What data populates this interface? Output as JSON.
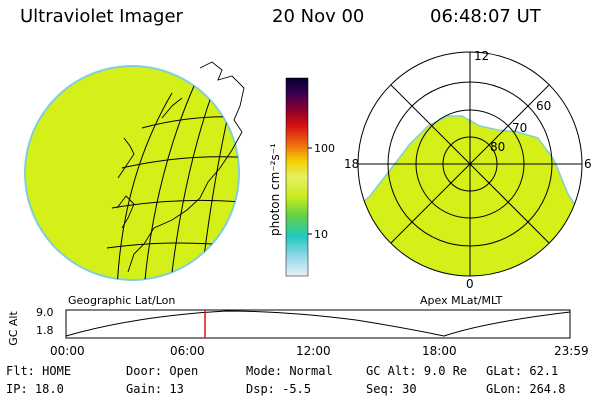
{
  "header": {
    "instrument": "Ultraviolet Imager",
    "date": "20 Nov 00",
    "time": "06:48:07 UT"
  },
  "colorbar": {
    "label": "photon cm⁻²s⁻¹",
    "ticks": [
      "100",
      "10"
    ]
  },
  "polar_plot": {
    "mlt_labels": [
      "12",
      "18",
      "6",
      "0"
    ],
    "lat_labels": [
      "60",
      "70",
      "80"
    ]
  },
  "projection_labels": {
    "left": "Geographic Lat/Lon",
    "right": "Apex MLat/MLT"
  },
  "altitude_plot": {
    "axis_label": "GC Alt",
    "y_ticks": [
      "9.0",
      "1.8"
    ],
    "x_ticks": [
      "00:00",
      "06:00",
      "12:00",
      "18:00",
      "23:59"
    ],
    "marker_time": "06:48"
  },
  "status": {
    "row1": [
      {
        "key": "Flt:",
        "value": "HOME"
      },
      {
        "key": "Door:",
        "value": "Open"
      },
      {
        "key": "Mode:",
        "value": "Normal"
      },
      {
        "key": "GC Alt:",
        "value": "9.0 Re"
      },
      {
        "key": "GLat:",
        "value": "62.1"
      }
    ],
    "row2": [
      {
        "key": "IP:",
        "value": "18.0"
      },
      {
        "key": "Gain:",
        "value": "13"
      },
      {
        "key": "Dsp:",
        "value": "-5.5"
      },
      {
        "key": "Seq:",
        "value": "30"
      },
      {
        "key": "GLon:",
        "value": "264.8"
      }
    ]
  },
  "colors": {
    "image_fill": "#d4f018",
    "image_edge": "#7fd0d8",
    "marker": "#d81818"
  }
}
